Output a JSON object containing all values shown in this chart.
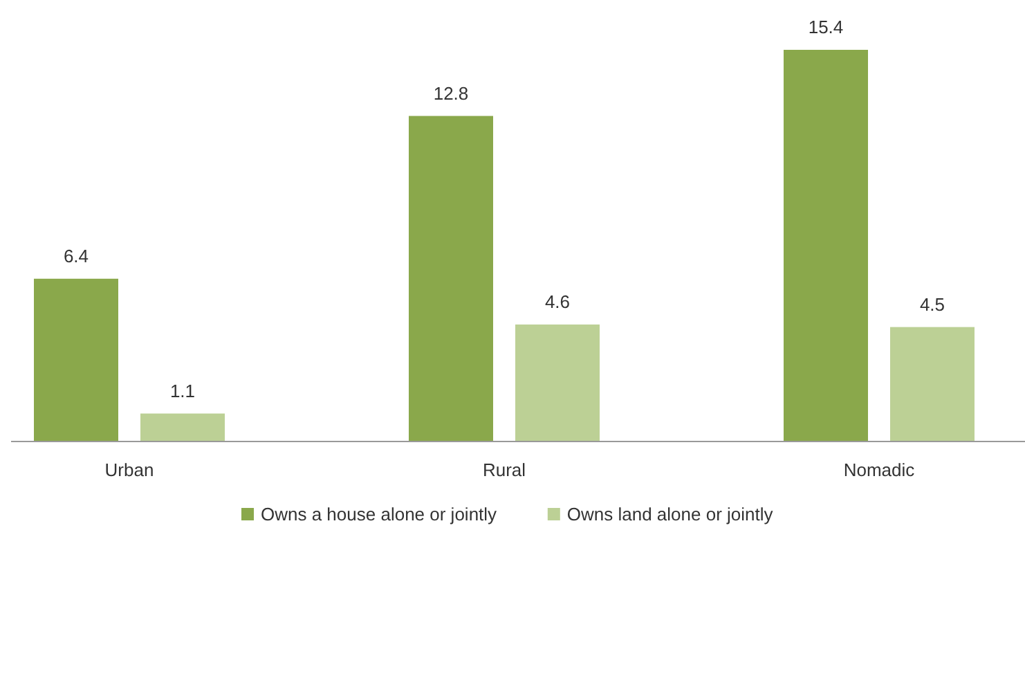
{
  "chart_data": {
    "type": "bar",
    "categories": [
      "Urban",
      "Rural",
      "Nomadic"
    ],
    "series": [
      {
        "name": "Owns a house alone or jointly",
        "color": "#8aa84b",
        "values": [
          6.4,
          12.8,
          15.4
        ]
      },
      {
        "name": "Owns land alone or jointly",
        "color": "#bcd095",
        "values": [
          1.1,
          4.6,
          4.5
        ]
      }
    ],
    "data_labels": true,
    "legend": "bottom"
  }
}
